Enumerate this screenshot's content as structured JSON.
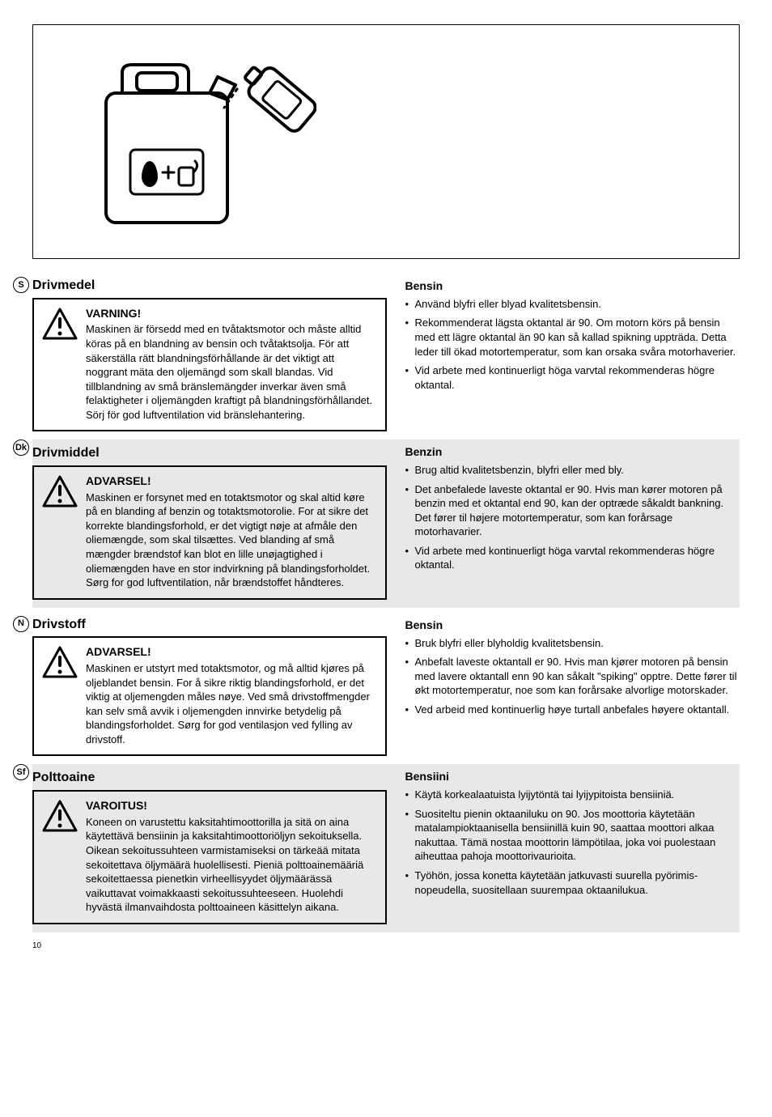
{
  "page_number": "10",
  "illustration": {
    "alt": "Fuel canister with oil bottle pouring, drop plus pump-can icon on label",
    "line_color": "#000000",
    "line_width": 4
  },
  "sections": [
    {
      "lang_code": "S",
      "shaded": false,
      "left": {
        "title": "Drivmedel",
        "warn_label": "VARNING!",
        "warn_body": "Maskinen är försedd med en tvåtaktsmotor och måste alltid köras på en blandning av bensin och tvåtaktsolja. För att säkerställa rätt blandningsförhållande är det viktigt att noggrant mäta den oljemängd som skall blandas. Vid tillblandning av små bränslemängder inverkar även små felaktigheter i oljemängden kraftigt på blandningsförhållandet. Sörj för god luftventilation vid bränslehantering."
      },
      "right": {
        "title": "Bensin",
        "bullets": [
          "Använd blyfri eller blyad kvalitetsbensin.",
          "Rekommenderat lägsta oktantal är 90. Om motorn körs på bensin med ett lägre oktantal än 90 kan så kallad spikning uppträda. Detta leder till ökad motortemperatur, som kan orsaka svåra motorhaverier.",
          "Vid arbete med kontinuerligt höga varvtal rekommenderas högre oktantal."
        ]
      }
    },
    {
      "lang_code": "Dk",
      "shaded": true,
      "left": {
        "title": "Drivmiddel",
        "warn_label": "ADVARSEL!",
        "warn_body": "Maskinen er forsynet med en totaktsmotor og skal altid køre på en blanding af benzin og totaktsmotorolie. For at sikre det korrekte blandingsforhold, er det vigtigt nøje at afmåle den oliemængde, som skal tilsættes. Ved blanding af små mængder brændstof kan blot en lille unøjagtighed i oliemængden have en stor indvirkning på blandingsforholdet. Sørg for god luftventilation, når brændstoffet håndteres."
      },
      "right": {
        "title": "Benzin",
        "bullets": [
          "Brug altid kvalitetsbenzin, blyfri eller med bly.",
          "Det anbefalede laveste oktantal er 90. Hvis man kører motoren på benzin med et oktantal end 90, kan der optræde såkaldt bankning. Det fører til højere motortemperatur, som kan forårsage motorhavarier.",
          "Vid arbete med kontinuerligt höga varvtal rekommenderas högre oktantal."
        ]
      }
    },
    {
      "lang_code": "N",
      "shaded": false,
      "left": {
        "title": "Drivstoff",
        "warn_label": "ADVARSEL!",
        "warn_body": "Maskinen er utstyrt med totaktsmotor, og må alltid kjøres på oljeblandet bensin. For å sikre riktig blandingsforhold, er det viktig at oljemengden måles nøye. Ved små drivstoffmengder kan selv små avvik i oljemengden innvirke betydelig på blandingsforholdet. Sørg for god ventilasjon ved fylling av drivstoff."
      },
      "right": {
        "title": "Bensin",
        "bullets": [
          "Bruk blyfri eller blyholdig kvalitetsbensin.",
          "Anbefalt laveste oktantall er 90. Hvis man kjører motoren på bensin med lavere oktantall enn 90 kan såkalt \"spiking\" opptre. Dette fører til økt motortemperatur, noe som kan forårsake alvorlige motorskader.",
          "Ved arbeid med kontinuerlig høye turtall anbefales høyere oktantall."
        ]
      }
    },
    {
      "lang_code": "Sf",
      "shaded": true,
      "left": {
        "title": "Polttoaine",
        "warn_label": "VAROITUS!",
        "warn_body": "Koneen on varustettu kaksitahtimoottorilla ja sitä on aina käytettävä bensiinin ja kaksitahtimoottoriöljyn sekoituksella. Oikean sekoitussuhteen varmistamiseksi on tärkeää mitata sekoitettava öljymäärä huolellisesti. Pieniä polttoainemääriä sekoitettaessa pienetkin virheellisyydet öljymäärässä vaikuttavat voimakkaasti sekoitussuhteeseen. Huolehdi hyvästä ilmanvaihdosta polttoaineen käsittelyn aikana."
      },
      "right": {
        "title": "Bensiini",
        "bullets": [
          "Käytä korkealaatuista lyijytöntä tai lyijypitoista bensiiniä.",
          "Suositeltu pienin oktaaniluku on 90. Jos moottoria käytetään matalampioktaanisella bensiinillä kuin 90, saattaa moottori alkaa nakuttaa. Tämä nostaa moottorin lämpötilaa, joka voi puolestaan aiheuttaa pahoja moottorivaurioita.",
          "Työhön, jossa konetta käytetään jatkuvasti suurella pyörimis-nopeudella, suositellaan suurempaa oktaanilukua."
        ]
      }
    }
  ]
}
